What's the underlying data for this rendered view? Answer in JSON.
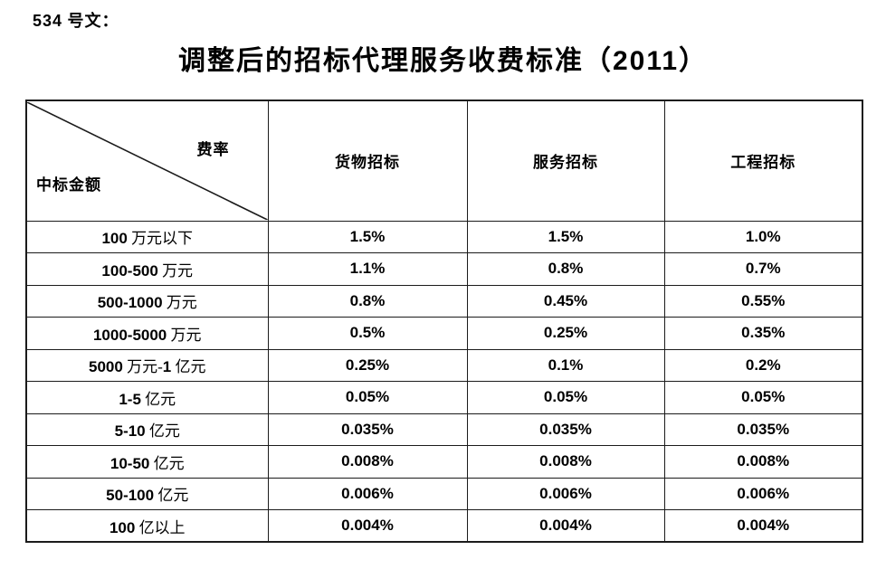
{
  "page": {
    "doc_label": "534 号文：",
    "title": "调整后的招标代理服务收费标准（2011）"
  },
  "table": {
    "corner": {
      "top_right": "费率",
      "bottom_left": "中标金额"
    },
    "columns": [
      "货物招标",
      "服务招标",
      "工程招标"
    ],
    "rows": [
      {
        "amount": "100 万元以下",
        "values": [
          "1.5%",
          "1.5%",
          "1.0%"
        ]
      },
      {
        "amount": "100-500 万元",
        "values": [
          "1.1%",
          "0.8%",
          "0.7%"
        ]
      },
      {
        "amount": "500-1000 万元",
        "values": [
          "0.8%",
          "0.45%",
          "0.55%"
        ]
      },
      {
        "amount": "1000-5000 万元",
        "values": [
          "0.5%",
          "0.25%",
          "0.35%"
        ]
      },
      {
        "amount": "5000 万元-1 亿元",
        "values": [
          "0.25%",
          "0.1%",
          "0.2%"
        ]
      },
      {
        "amount": "1-5 亿元",
        "values": [
          "0.05%",
          "0.05%",
          "0.05%"
        ]
      },
      {
        "amount": "5-10 亿元",
        "values": [
          "0.035%",
          "0.035%",
          "0.035%"
        ]
      },
      {
        "amount": "10-50 亿元",
        "values": [
          "0.008%",
          "0.008%",
          "0.008%"
        ]
      },
      {
        "amount": "50-100 亿元",
        "values": [
          "0.006%",
          "0.006%",
          "0.006%"
        ]
      },
      {
        "amount": "100 亿以上",
        "values": [
          "0.004%",
          "0.004%",
          "0.004%"
        ]
      }
    ],
    "border_color": "#1b1b1b"
  }
}
